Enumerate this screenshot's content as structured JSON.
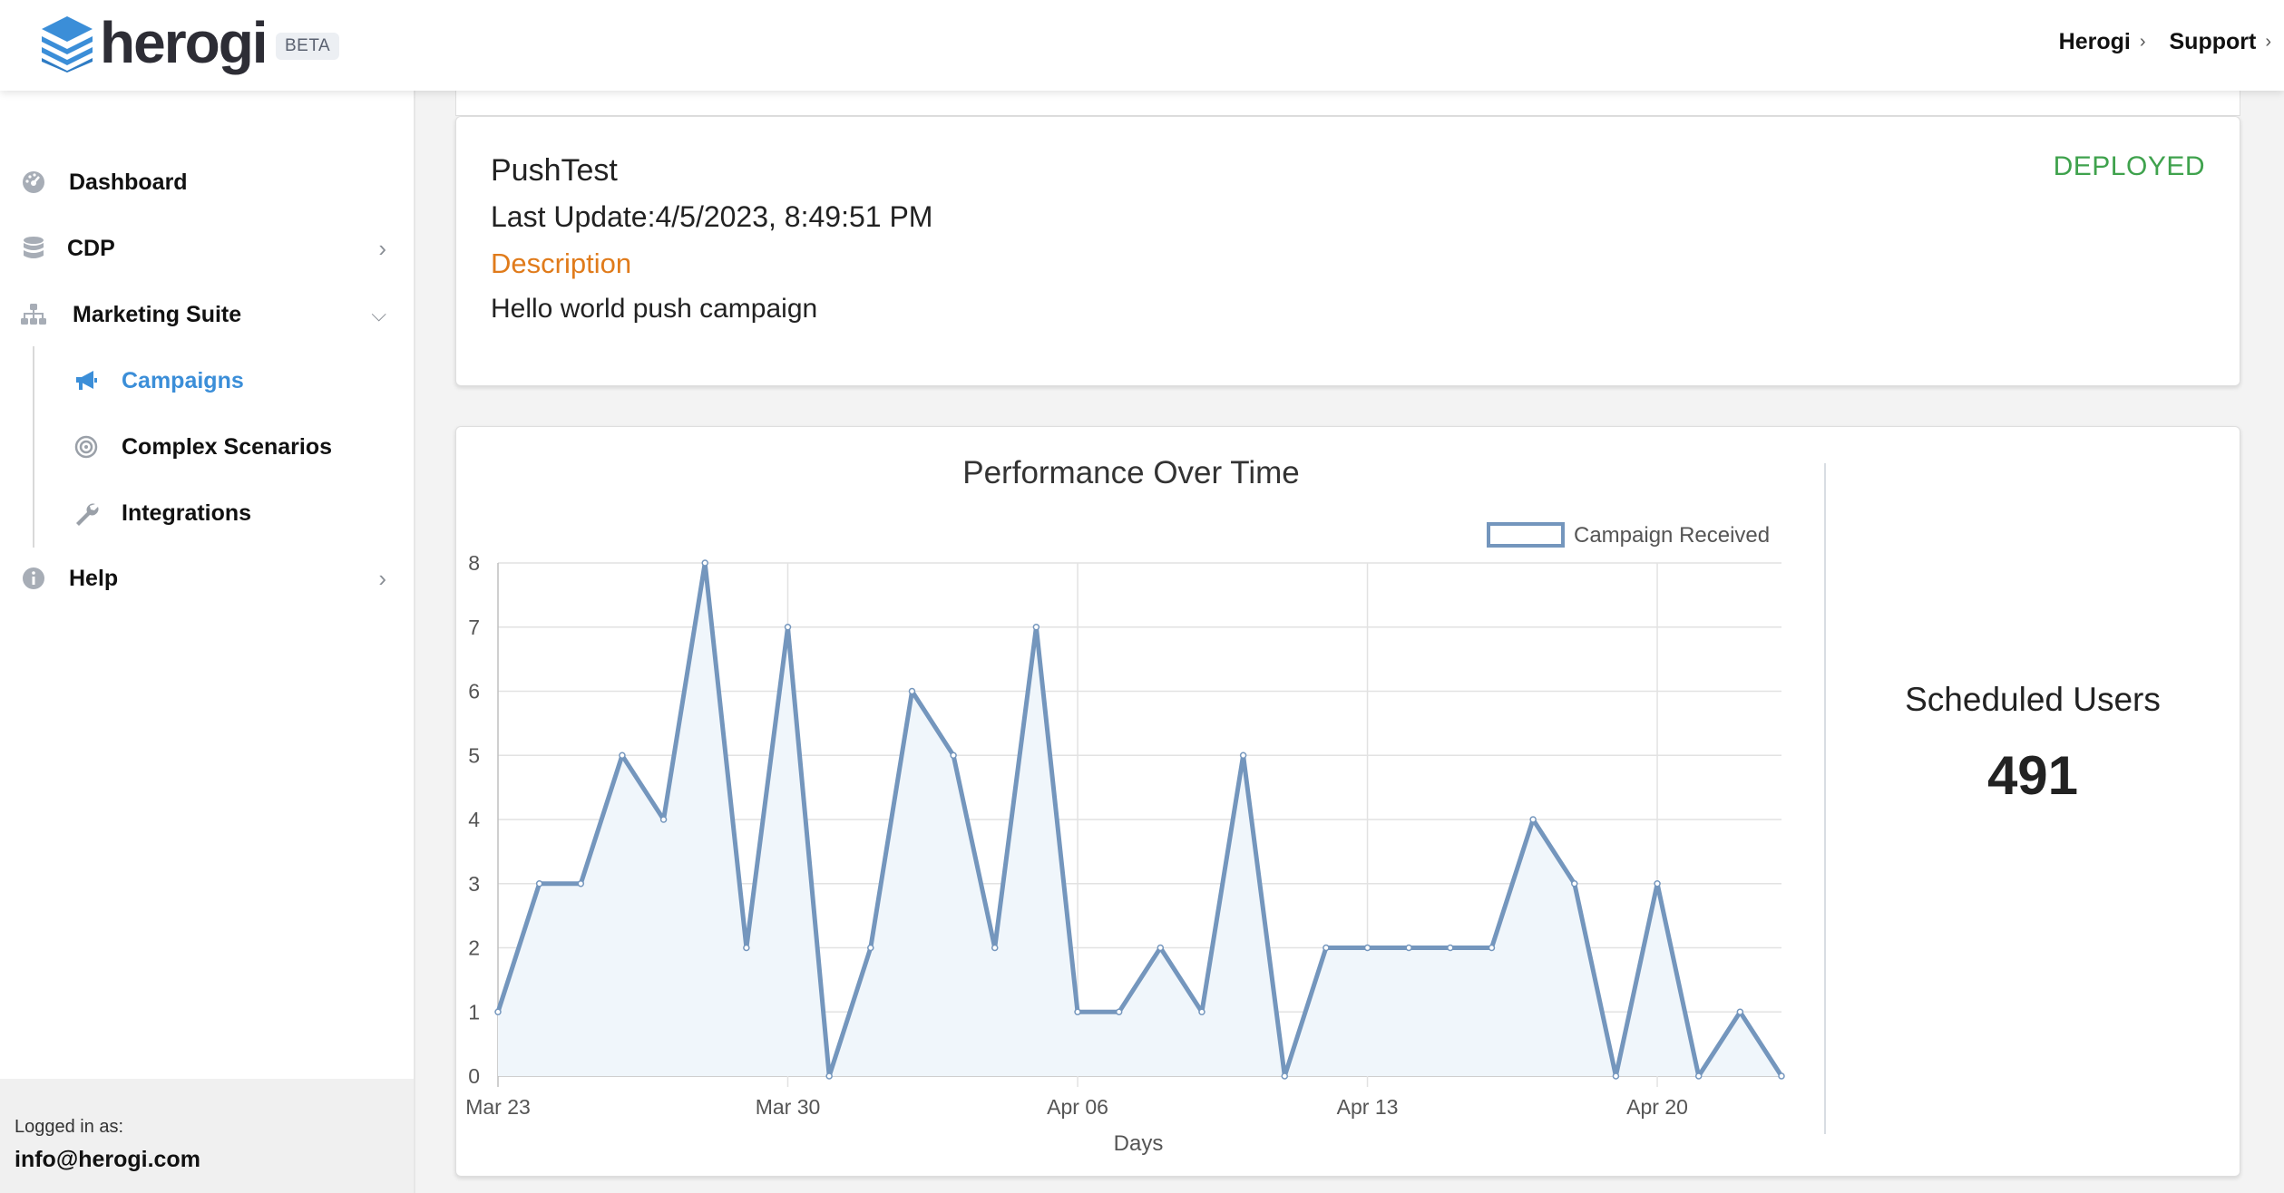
{
  "header": {
    "brand": "herogi",
    "beta_badge": "BETA",
    "nav": [
      {
        "label": "Herogi"
      },
      {
        "label": "Support"
      }
    ]
  },
  "sidebar": {
    "items": [
      {
        "label": "Dashboard",
        "icon": "dashboard-gauge-icon"
      },
      {
        "label": "CDP",
        "icon": "database-icon"
      },
      {
        "label": "Marketing Suite",
        "icon": "sitemap-icon"
      },
      {
        "label": "Help",
        "icon": "info-circle-icon"
      }
    ],
    "sub_items": [
      {
        "label": "Campaigns",
        "icon": "megaphone-icon",
        "active": true
      },
      {
        "label": "Complex Scenarios",
        "icon": "target-icon"
      },
      {
        "label": "Integrations",
        "icon": "wrench-icon"
      }
    ],
    "footer": {
      "logged_in_label": "Logged in as:",
      "email": "info@herogi.com"
    }
  },
  "campaign": {
    "name": "PushTest",
    "last_update": "Last Update:4/5/2023, 8:49:51 PM",
    "description_label": "Description",
    "description": "Hello world push campaign",
    "status": "DEPLOYED",
    "status_color": "#3fa24d"
  },
  "stats": {
    "scheduled_users_label": "Scheduled Users",
    "scheduled_users": "491"
  },
  "chart_data": {
    "type": "area",
    "title": "Performance Over Time",
    "xlabel": "Days",
    "ylabel": "",
    "x": [
      "2023-03-23",
      "2023-03-24",
      "2023-03-25",
      "2023-03-26",
      "2023-03-27",
      "2023-03-28",
      "2023-03-29",
      "2023-03-30",
      "2023-03-31",
      "2023-04-01",
      "2023-04-02",
      "2023-04-03",
      "2023-04-04",
      "2023-04-05",
      "2023-04-06",
      "2023-04-07",
      "2023-04-08",
      "2023-04-09",
      "2023-04-10",
      "2023-04-11",
      "2023-04-12",
      "2023-04-13",
      "2023-04-14",
      "2023-04-15",
      "2023-04-16",
      "2023-04-17",
      "2023-04-18",
      "2023-04-19",
      "2023-04-20",
      "2023-04-21",
      "2023-04-22",
      "2023-04-23"
    ],
    "series": [
      {
        "name": "Campaign Received",
        "values": [
          1,
          3,
          3,
          5,
          4,
          8,
          2,
          7,
          0,
          2,
          6,
          5,
          2,
          7,
          1,
          1,
          2,
          1,
          5,
          0,
          2,
          2,
          2,
          2,
          2,
          4,
          3,
          0,
          3,
          0,
          1,
          0
        ],
        "color": "#7496bd"
      }
    ],
    "x_tick_labels": [
      "Mar 23",
      "Mar 30",
      "Apr 06",
      "Apr 13",
      "Apr 20"
    ],
    "ylim": [
      0,
      8
    ],
    "y_ticks": [
      "0",
      "1",
      "2",
      "3",
      "4",
      "5",
      "6",
      "7",
      "8"
    ],
    "grid": true,
    "legend": "top-right",
    "fill_color": "#f0f6fb"
  }
}
